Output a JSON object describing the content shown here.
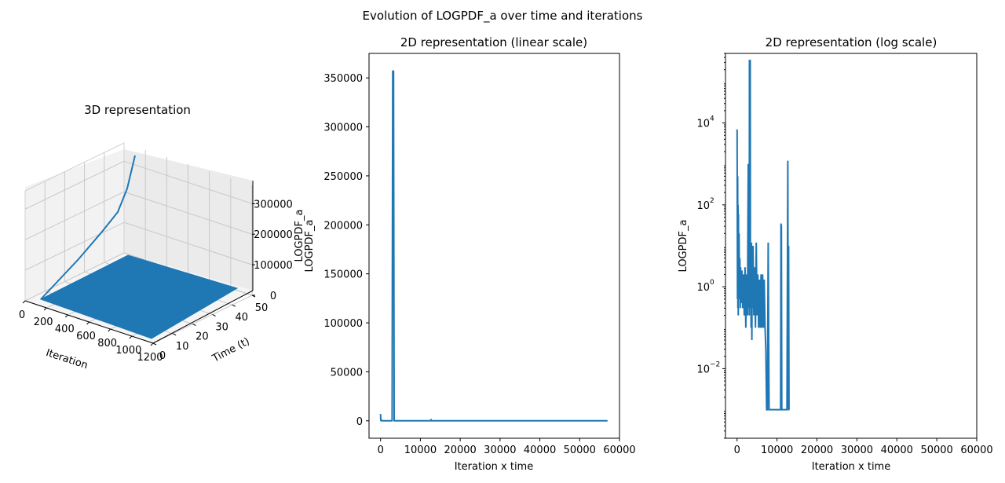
{
  "figure_title": "Evolution of LOGPDF_a over time and iterations",
  "colors": {
    "series": "#1f77b4",
    "pane": "#f2f2f2",
    "grid": "#b0b0b0"
  },
  "chart_data": [
    {
      "type": "line",
      "projection": "3d",
      "title": "3D representation",
      "xlabel": "Iteration",
      "ylabel": "Time (t)",
      "zlabel": "LOGPDF_a",
      "xticks": [
        0,
        200,
        400,
        600,
        800,
        1000,
        1200
      ],
      "yticks": [
        0,
        10,
        20,
        30,
        40,
        50
      ],
      "zticks": [
        0,
        100000,
        200000,
        300000
      ],
      "xlim": [
        0,
        1200
      ],
      "ylim": [
        0,
        50
      ],
      "zlim": [
        0,
        360000
      ],
      "grid": true,
      "note_series": [
        {
          "x": [
            0,
            40,
            60,
            70,
            75,
            78
          ],
          "y": [
            0,
            40,
            44,
            46,
            48,
            50
          ],
          "z": [
            0,
            20000,
            70000,
            150000,
            260000,
            357000
          ]
        }
      ]
    },
    {
      "type": "line",
      "title": "2D representation (linear scale)",
      "xlabel": "Iteration x time",
      "ylabel": "LOGPDF_a",
      "xticks": [
        0,
        10000,
        20000,
        30000,
        40000,
        50000,
        60000
      ],
      "yticks": [
        0,
        50000,
        100000,
        150000,
        200000,
        250000,
        300000,
        350000
      ],
      "xlim": [
        -2900,
        60000
      ],
      "ylim": [
        -17800,
        375000
      ],
      "series": [
        {
          "x": [
            0,
            50,
            100,
            200,
            300,
            2900,
            3050,
            3150,
            3250,
            3400,
            12600,
            12700,
            12800,
            57000
          ],
          "y": [
            7000,
            300,
            2000,
            100,
            50,
            100,
            357000,
            150000,
            357000,
            100,
            100,
            1200,
            50,
            50
          ]
        }
      ]
    },
    {
      "type": "line",
      "scale": "log",
      "title": "2D representation (log scale)",
      "xlabel": "Iteration x time",
      "ylabel": "LOGPDF_a",
      "xticks": [
        0,
        10000,
        20000,
        30000,
        40000,
        50000,
        60000
      ],
      "yticks": [
        0.01,
        1,
        100,
        10000
      ],
      "ytick_labels": [
        "10",
        "10",
        "10",
        "10"
      ],
      "ytick_exponents": [
        "−2",
        "0",
        "2",
        "4"
      ],
      "xlim": [
        -2900,
        60000
      ],
      "ylim": [
        0.0002,
        500000
      ],
      "series": [
        {
          "x": [
            0,
            100,
            150,
            200,
            250,
            300,
            350,
            400,
            500,
            600,
            700,
            800,
            900,
            1000,
            1200,
            1400,
            1600,
            1800,
            2000,
            2200,
            2400,
            2600,
            2800,
            2900,
            3000,
            3050,
            3100,
            3200,
            3300,
            3350,
            3400,
            3500,
            3600,
            3700,
            3800,
            3900,
            4000,
            4200,
            4400,
            4600,
            4800,
            5000,
            5200,
            5400,
            5600,
            5800,
            6000,
            6200,
            6400,
            6600,
            6800,
            7000,
            7200,
            7400,
            7600,
            7800,
            8000,
            8200,
            10900,
            11000,
            11100,
            11200,
            12500,
            12700,
            12800,
            12900,
            13000,
            13100
          ],
          "y": [
            7000,
            0.5,
            500,
            0.3,
            100,
            0.2,
            60,
            1,
            20,
            0.5,
            5,
            0.3,
            3,
            0.4,
            2.5,
            0.3,
            2,
            0.2,
            3,
            0.1,
            2,
            0.2,
            1000,
            0.3,
            1000,
            0.2,
            350000,
            0.5,
            350000,
            0.3,
            12,
            0.1,
            12,
            0.05,
            10,
            0.3,
            10,
            0.2,
            3,
            0.1,
            12,
            0.2,
            2,
            0.1,
            1.5,
            0.1,
            2,
            0.1,
            2,
            0.1,
            1.5,
            0.1,
            0.03,
            0.001,
            0.001,
            12,
            0.001,
            0.001,
            0.001,
            35,
            30,
            0.001,
            0.001,
            1200,
            0.001,
            10,
            0.001,
            0.001
          ]
        }
      ]
    }
  ]
}
